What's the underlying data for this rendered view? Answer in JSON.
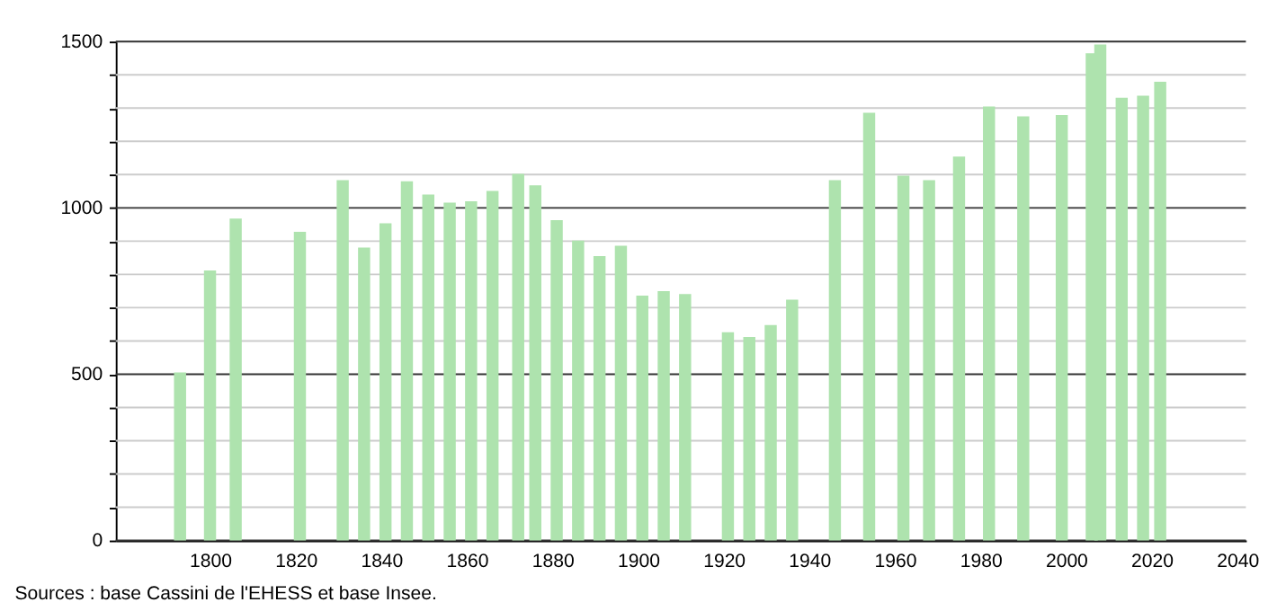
{
  "chart_data": {
    "type": "bar",
    "x": [
      1793,
      1800,
      1806,
      1821,
      1831,
      1836,
      1841,
      1846,
      1851,
      1856,
      1861,
      1866,
      1872,
      1876,
      1881,
      1886,
      1891,
      1896,
      1901,
      1906,
      1911,
      1921,
      1926,
      1931,
      1936,
      1946,
      1954,
      1962,
      1968,
      1975,
      1982,
      1990,
      1999,
      2006,
      2008,
      2013,
      2018,
      2022
    ],
    "values": [
      505,
      812,
      968,
      928,
      1083,
      881,
      954,
      1080,
      1040,
      1016,
      1020,
      1051,
      1102,
      1068,
      963,
      902,
      855,
      886,
      736,
      750,
      741,
      626,
      612,
      648,
      724,
      1083,
      1286,
      1097,
      1083,
      1154,
      1305,
      1275,
      1279,
      1465,
      1491,
      1331,
      1337,
      1379
    ],
    "color": "#aee3ae",
    "xlim": [
      1780,
      2040
    ],
    "xticks": [
      1800,
      1820,
      1840,
      1860,
      1880,
      1900,
      1920,
      1940,
      1960,
      1980,
      2000,
      2020,
      2040
    ],
    "ylim": [
      0,
      1500
    ],
    "yticks": [
      0,
      {
        "value": 100,
        "label": null
      },
      {
        "value": 200,
        "label": null
      },
      {
        "value": 300,
        "label": null
      },
      {
        "value": 400,
        "label": null
      },
      500,
      {
        "value": 600,
        "label": null
      },
      {
        "value": 700,
        "label": null
      },
      {
        "value": 800,
        "label": null
      },
      {
        "value": 900,
        "label": null
      },
      1000,
      {
        "value": 1100,
        "label": null
      },
      {
        "value": 1200,
        "label": null
      },
      {
        "value": 1300,
        "label": null
      },
      {
        "value": 1400,
        "label": null
      },
      1500
    ],
    "grid": "y",
    "annotations": [
      "Sources : base Cassini de l'EHESS et base Insee."
    ]
  }
}
